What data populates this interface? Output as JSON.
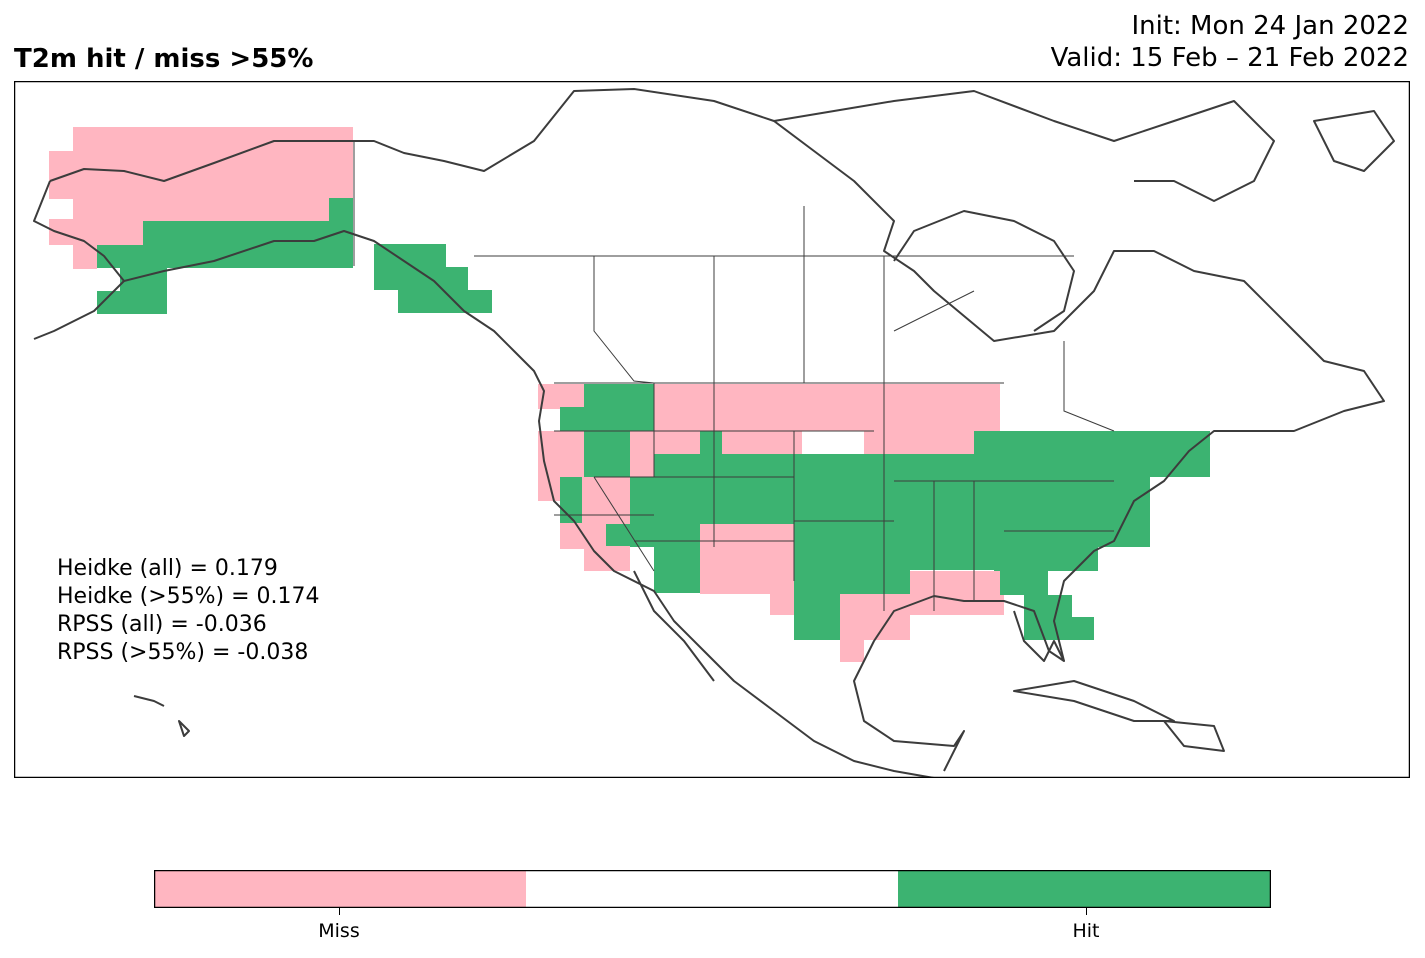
{
  "header": {
    "title": "T2m hit / miss  >55%",
    "init": "Init: Mon 24 Jan 2022",
    "valid": "Valid: 15 Feb – 21 Feb 2022"
  },
  "stats": [
    "Heidke (all) = 0.179",
    "Heidke (>55%) = 0.174",
    "RPSS (all) = -0.036",
    "RPSS (>55%) = -0.038"
  ],
  "legend": {
    "categories": [
      {
        "label": "Miss",
        "color": "#ffb6c1"
      },
      {
        "label": "",
        "color": "#ffffff"
      },
      {
        "label": "Hit",
        "color": "#3cb371"
      }
    ]
  },
  "colors": {
    "miss": "#ffb6c1",
    "hit": "#3cb371",
    "coast": "#3c3c3c",
    "frame": "#000000"
  }
}
